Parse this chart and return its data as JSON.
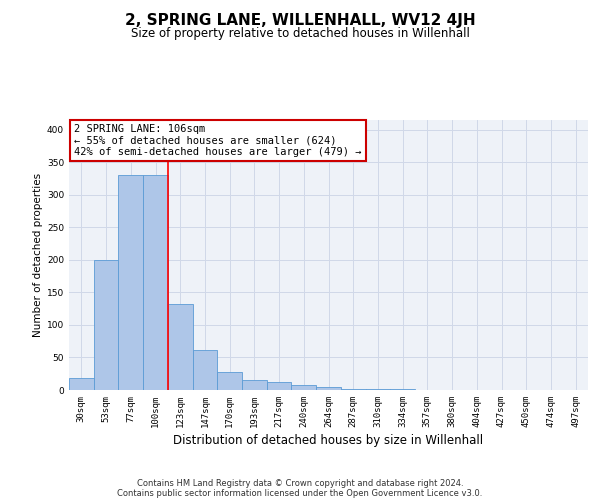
{
  "title": "2, SPRING LANE, WILLENHALL, WV12 4JH",
  "subtitle": "Size of property relative to detached houses in Willenhall",
  "xlabel": "Distribution of detached houses by size in Willenhall",
  "ylabel": "Number of detached properties",
  "categories": [
    "30sqm",
    "53sqm",
    "77sqm",
    "100sqm",
    "123sqm",
    "147sqm",
    "170sqm",
    "193sqm",
    "217sqm",
    "240sqm",
    "264sqm",
    "287sqm",
    "310sqm",
    "334sqm",
    "357sqm",
    "380sqm",
    "404sqm",
    "427sqm",
    "450sqm",
    "474sqm",
    "497sqm"
  ],
  "values": [
    18,
    200,
    330,
    330,
    132,
    62,
    27,
    16,
    13,
    7,
    4,
    2,
    1,
    1,
    0,
    0,
    0,
    0,
    0,
    0,
    0
  ],
  "bar_color": "#aec6e8",
  "bar_edge_color": "#5b9bd5",
  "grid_color": "#d0d8e8",
  "background_color": "#eef2f8",
  "red_line_x": 3.5,
  "annotation_line1": "2 SPRING LANE: 106sqm",
  "annotation_line2": "← 55% of detached houses are smaller (624)",
  "annotation_line3": "42% of semi-detached houses are larger (479) →",
  "annotation_box_color": "#ffffff",
  "annotation_box_edge": "#cc0000",
  "footer_line1": "Contains HM Land Registry data © Crown copyright and database right 2024.",
  "footer_line2": "Contains public sector information licensed under the Open Government Licence v3.0.",
  "ylim": [
    0,
    415
  ],
  "yticks": [
    0,
    50,
    100,
    150,
    200,
    250,
    300,
    350,
    400
  ],
  "title_fontsize": 11,
  "subtitle_fontsize": 8.5,
  "ylabel_fontsize": 7.5,
  "xlabel_fontsize": 8.5,
  "tick_fontsize": 6.5,
  "annotation_fontsize": 7.5,
  "footer_fontsize": 6
}
